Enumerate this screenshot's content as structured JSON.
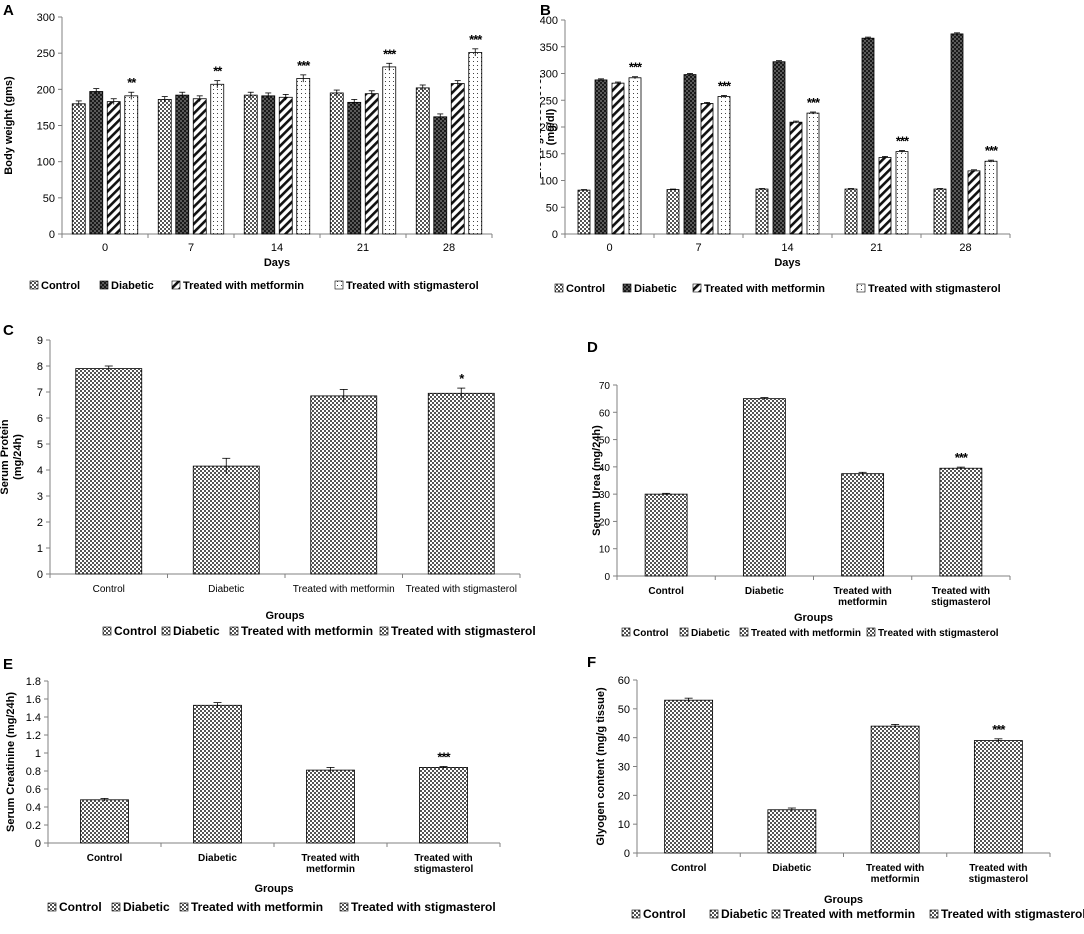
{
  "colors": {
    "axis": "#808080",
    "grid": "#d9d9d9",
    "bar_stroke": "#000000",
    "text": "#000000"
  },
  "chart_data": [
    {
      "panel": "A",
      "type": "bar",
      "categories": [
        "0",
        "7",
        "14",
        "21",
        "28"
      ],
      "series": [
        {
          "name": "Control",
          "pattern": "checker",
          "values": [
            180,
            186,
            192,
            195,
            202
          ],
          "err": [
            4,
            4,
            4,
            4,
            4
          ]
        },
        {
          "name": "Diabetic",
          "pattern": "dark",
          "values": [
            197,
            192,
            191,
            182,
            162
          ],
          "err": [
            4,
            4,
            4,
            4,
            4
          ]
        },
        {
          "name": "Treated with metformin",
          "pattern": "diag",
          "values": [
            183,
            187,
            189,
            194,
            208
          ],
          "err": [
            4,
            4,
            4,
            4,
            4
          ]
        },
        {
          "name": "Treated with stigmasterol",
          "pattern": "dots",
          "values": [
            191,
            207,
            215,
            231,
            251
          ],
          "err": [
            5,
            5,
            5,
            5,
            5
          ]
        }
      ],
      "annotations": [
        {
          "category": "0",
          "series": "Treated with stigmasterol",
          "text": "**"
        },
        {
          "category": "7",
          "series": "Treated with stigmasterol",
          "text": "**"
        },
        {
          "category": "14",
          "series": "Treated with stigmasterol",
          "text": "***"
        },
        {
          "category": "21",
          "series": "Treated with stigmasterol",
          "text": "***"
        },
        {
          "category": "28",
          "series": "Treated with stigmasterol",
          "text": "***"
        }
      ],
      "xlabel": "Days",
      "ylabel": "Body weight (gms)",
      "ylim": [
        0,
        300
      ],
      "ytick_step": 50,
      "grid": false,
      "legend": "bottom"
    },
    {
      "panel": "B",
      "type": "bar",
      "categories": [
        "0",
        "7",
        "14",
        "21",
        "28"
      ],
      "series": [
        {
          "name": "Control",
          "pattern": "checker",
          "values": [
            82,
            83,
            84,
            84,
            84
          ],
          "err": [
            1,
            1,
            1,
            1,
            1
          ]
        },
        {
          "name": "Diabetic",
          "pattern": "dark",
          "values": [
            288,
            298,
            322,
            366,
            374
          ],
          "err": [
            2,
            2,
            2,
            2,
            2
          ]
        },
        {
          "name": "Treated with metformin",
          "pattern": "diag",
          "values": [
            282,
            244,
            209,
            143,
            118
          ],
          "err": [
            2,
            2,
            2,
            2,
            2
          ]
        },
        {
          "name": "Treated with stigmasterol",
          "pattern": "dots",
          "values": [
            292,
            257,
            226,
            154,
            136
          ],
          "err": [
            2,
            2,
            2,
            2,
            2
          ]
        }
      ],
      "annotations": [
        {
          "category": "0",
          "series": "Treated with stigmasterol",
          "text": "***"
        },
        {
          "category": "7",
          "series": "Treated with stigmasterol",
          "text": "***"
        },
        {
          "category": "14",
          "series": "Treated with stigmasterol",
          "text": "***"
        },
        {
          "category": "21",
          "series": "Treated with stigmasterol",
          "text": "***"
        },
        {
          "category": "28",
          "series": "Treated with stigmasterol",
          "text": "***"
        }
      ],
      "xlabel": "Days",
      "ylabel": "Blood glucose level (mg/dl)",
      "ylim": [
        0,
        400
      ],
      "ytick_step": 50,
      "grid": false,
      "legend": "bottom"
    },
    {
      "panel": "C",
      "type": "bar",
      "categories": [
        "Control",
        "Diabetic",
        "Treated with metformin",
        "Treated with stigmasterol"
      ],
      "values": [
        7.9,
        4.15,
        6.85,
        6.95
      ],
      "err": [
        0.1,
        0.3,
        0.25,
        0.2
      ],
      "annotations": [
        {
          "category": "Treated with stigmasterol",
          "text": "*"
        }
      ],
      "xlabel": "Groups",
      "ylabel": "Serum Protein (mg/24h)",
      "ylim": [
        0,
        9
      ],
      "ytick_step": 1,
      "grid": false,
      "legend": "bottom"
    },
    {
      "panel": "D",
      "type": "bar",
      "categories": [
        "Control",
        "Diabetic",
        "Treated with metformin",
        "Treated with stigmasterol"
      ],
      "values": [
        30,
        65,
        37.5,
        39.5
      ],
      "err": [
        0.3,
        0.4,
        0.5,
        0.4
      ],
      "annotations": [
        {
          "category": "Treated with stigmasterol",
          "text": "***"
        }
      ],
      "xlabel": "Groups",
      "ylabel": "Serum Urea (mg/24h)",
      "ylim": [
        0,
        70
      ],
      "ytick_step": 10,
      "grid": false,
      "legend": "bottom"
    },
    {
      "panel": "E",
      "type": "bar",
      "categories": [
        "Control",
        "Diabetic",
        "Treated with metformin",
        "Treated with stigmasterol"
      ],
      "values": [
        0.48,
        1.53,
        0.81,
        0.84
      ],
      "err": [
        0.015,
        0.03,
        0.03,
        0.01
      ],
      "annotations": [
        {
          "category": "Treated with stigmasterol",
          "text": "***"
        }
      ],
      "xlabel": "Groups",
      "ylabel": "Serum Creatinine (mg/24h)",
      "ylim": [
        0,
        1.8
      ],
      "ytick_step": 0.2,
      "grid": false,
      "legend": "bottom"
    },
    {
      "panel": "F",
      "type": "bar",
      "categories": [
        "Control",
        "Diabetic",
        "Treated with metformin",
        "Treated with stigmasterol"
      ],
      "values": [
        53,
        15,
        44,
        39
      ],
      "err": [
        0.7,
        0.6,
        0.6,
        0.6
      ],
      "annotations": [
        {
          "category": "Treated with stigmasterol",
          "text": "***"
        }
      ],
      "xlabel": "Groups",
      "ylabel": "Glyogen content (mg/g tissue)",
      "ylim": [
        0,
        60
      ],
      "ytick_step": 10,
      "grid": false,
      "legend": "bottom"
    }
  ]
}
